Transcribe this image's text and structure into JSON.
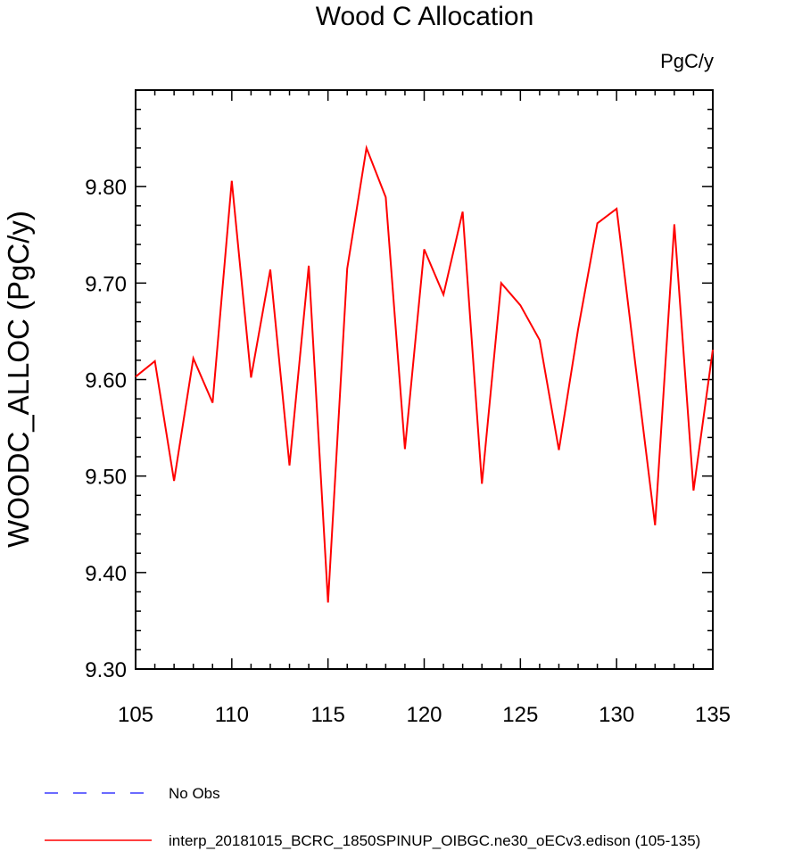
{
  "chart_data": {
    "type": "line",
    "title": "Wood C Allocation",
    "units_label": "PgC/y",
    "ylabel": "WOODC_ALLOC  (PgC/y)",
    "xlabel": "",
    "xlim": [
      105,
      135
    ],
    "ylim": [
      9.3,
      9.9
    ],
    "x_ticks": [
      105,
      110,
      115,
      120,
      125,
      130,
      135
    ],
    "y_ticks": [
      9.3,
      9.4,
      9.5,
      9.6,
      9.7,
      9.8
    ],
    "x_tick_labels": [
      "105",
      "110",
      "115",
      "120",
      "125",
      "130",
      "135"
    ],
    "y_tick_labels": [
      "9.30",
      "9.40",
      "9.50",
      "9.60",
      "9.70",
      "9.80"
    ],
    "grid": false,
    "legend_position": "bottom",
    "series": [
      {
        "name": "interp_20181015_BCRC_1850SPINUP_OIBGC.ne30_oECv3.edison (105-135)",
        "color": "#ff0000",
        "style": "solid",
        "x": [
          105,
          106,
          107,
          108,
          109,
          110,
          111,
          112,
          113,
          114,
          115,
          116,
          117,
          118,
          119,
          120,
          121,
          122,
          123,
          124,
          125,
          126,
          127,
          128,
          129,
          130,
          131,
          132,
          133,
          134,
          135
        ],
        "values": [
          9.603,
          9.619,
          9.495,
          9.622,
          9.576,
          9.806,
          9.602,
          9.714,
          9.511,
          9.718,
          9.369,
          9.715,
          9.84,
          9.789,
          9.528,
          9.735,
          9.688,
          9.774,
          9.492,
          9.7,
          9.677,
          9.641,
          9.527,
          9.652,
          9.762,
          9.777,
          9.612,
          9.449,
          9.761,
          9.485,
          9.631
        ]
      }
    ],
    "legend": [
      {
        "label": "No Obs",
        "color": "#3a3aff",
        "style": "dashed"
      },
      {
        "label": "interp_20181015_BCRC_1850SPINUP_OIBGC.ne30_oECv3.edison (105-135)",
        "color": "#ff0000",
        "style": "solid"
      }
    ]
  }
}
